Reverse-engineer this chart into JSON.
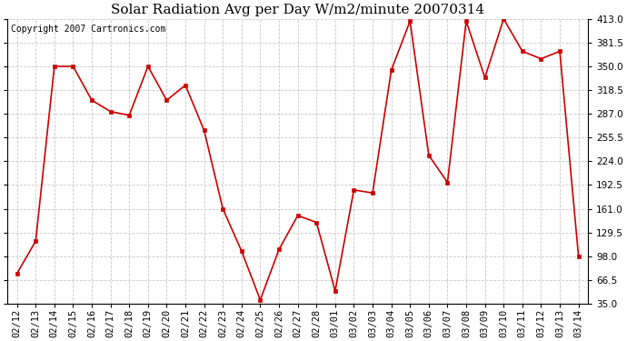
{
  "title": "Solar Radiation Avg per Day W/m2/minute 20070314",
  "copyright_text": "Copyright 2007 Cartronics.com",
  "dates": [
    "02/12",
    "02/13",
    "02/14",
    "02/15",
    "02/16",
    "02/17",
    "02/18",
    "02/19",
    "02/20",
    "02/21",
    "02/22",
    "02/23",
    "02/24",
    "02/25",
    "02/26",
    "02/27",
    "02/28",
    "03/01",
    "03/02",
    "03/03",
    "03/04",
    "03/05",
    "03/06",
    "03/07",
    "03/08",
    "03/09",
    "03/10",
    "03/11",
    "03/12",
    "03/13",
    "03/14"
  ],
  "values": [
    75,
    118,
    350,
    350,
    305,
    290,
    285,
    350,
    305,
    325,
    265,
    161,
    105,
    40,
    107,
    152,
    143,
    52,
    186,
    182,
    345,
    410,
    232,
    196,
    410,
    335,
    413,
    370,
    360,
    370,
    98
  ],
  "line_color": "#cc0000",
  "marker_color": "#cc0000",
  "bg_color": "#ffffff",
  "grid_color": "#c8c8c8",
  "ylim": [
    35.0,
    413.0
  ],
  "yticks": [
    35.0,
    66.5,
    98.0,
    129.5,
    161.0,
    192.5,
    224.0,
    255.5,
    287.0,
    318.5,
    350.0,
    381.5,
    413.0
  ],
  "title_fontsize": 11,
  "copyright_fontsize": 7,
  "tick_fontsize": 7.5
}
